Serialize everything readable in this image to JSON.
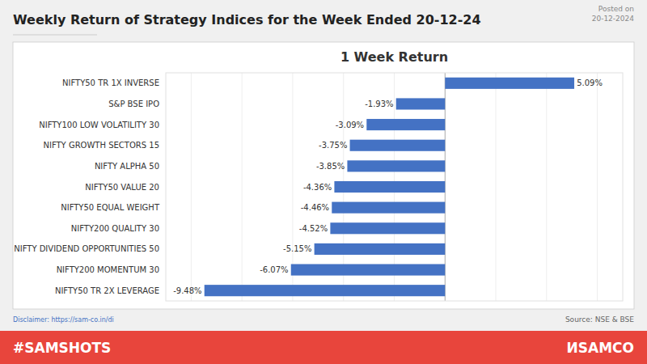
{
  "chart_data": {
    "type": "bar",
    "orientation": "horizontal",
    "title": "Weekly Return of Strategy Indices for the Week Ended 20-12-24",
    "subtitle": "1 Week Return",
    "annotations": [
      "Posted on\n20-12-2024",
      "Disclaimer: https://sam-co.in/di",
      "Source: NSE & BSE",
      "#SAMSHOTS",
      "ИSAMCO"
    ],
    "categories": [
      "NIFTY50 TR 1X INVERSE",
      "S&P BSE IPO",
      "NIFTY100 LOW VOLATILITY 30",
      "NIFTY GROWTH SECTORS 15",
      "NIFTY ALPHA 50",
      "NIFTY50 VALUE 20",
      "NIFTY50 EQUAL WEIGHT",
      "NIFTY200 QUALITY 30",
      "NIFTY DIVIDEND OPPORTUNITIES 50",
      "NIFTY200 MOMENTUM 30",
      "NIFTY50 TR 2X LEVERAGE"
    ],
    "values": [
      5.09,
      -1.93,
      -3.09,
      -3.75,
      -3.85,
      -4.36,
      -4.46,
      -4.52,
      -5.15,
      -6.07,
      -9.48
    ],
    "value_labels": [
      "5.09%",
      "-1.93%",
      "-3.09%",
      "-3.75%",
      "-3.85%",
      "-4.36%",
      "-4.46%",
      "-4.52%",
      "-5.15%",
      "-6.07%",
      "-9.48%"
    ],
    "data_labels": true,
    "color": "#4472C4",
    "xlim": [
      -11,
      7
    ],
    "xticks": [
      -10,
      -8,
      -6,
      -4,
      -2,
      0,
      2,
      4,
      6
    ],
    "grid": true,
    "tick_labels": "y"
  }
}
